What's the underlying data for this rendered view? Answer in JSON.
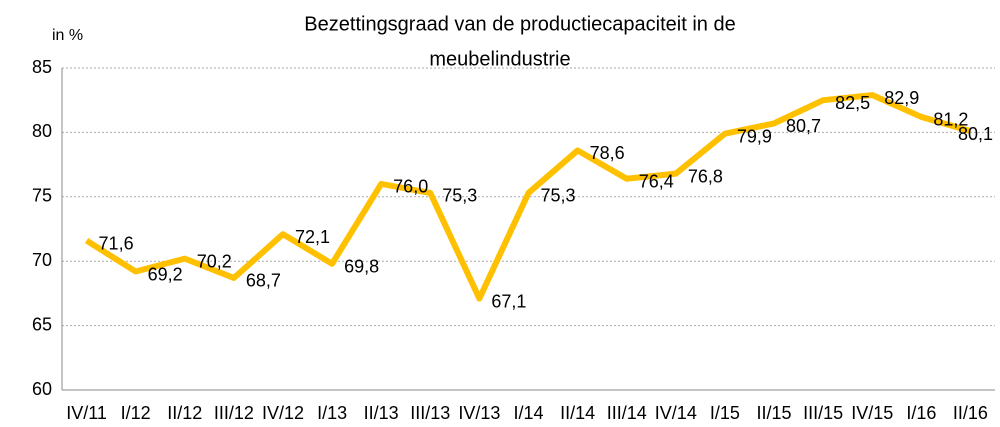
{
  "chart_data": {
    "type": "line",
    "title": [
      "Bezettingsgraad van de productiecapaciteit in de",
      "meubelindustrie"
    ],
    "y_label": "in %",
    "categories": [
      "IV/11",
      "I/12",
      "II/12",
      "III/12",
      "IV/12",
      "I/13",
      "II/13",
      "III/13",
      "IV/13",
      "I/14",
      "II/14",
      "III/14",
      "IV/14",
      "I/15",
      "II/15",
      "III/15",
      "IV/15",
      "I/16",
      "II/16"
    ],
    "values": [
      71.6,
      69.2,
      70.2,
      68.7,
      72.1,
      69.8,
      76.0,
      75.3,
      67.1,
      75.3,
      78.6,
      76.4,
      76.8,
      79.9,
      80.7,
      82.5,
      82.9,
      81.2,
      80.1
    ],
    "value_labels": [
      "71,6",
      "69,2",
      "70,2",
      "68,7",
      "72,1",
      "69,8",
      "76,0",
      "75,3",
      "67,1",
      "75,3",
      "78,6",
      "76,4",
      "76,8",
      "79,9",
      "80,7",
      "82,5",
      "82,9",
      "81,2",
      "80,1"
    ],
    "color": "#ffc000",
    "ylim": [
      60,
      85
    ],
    "yticks": [
      60,
      65,
      70,
      75,
      80,
      85
    ],
    "grid": true
  }
}
